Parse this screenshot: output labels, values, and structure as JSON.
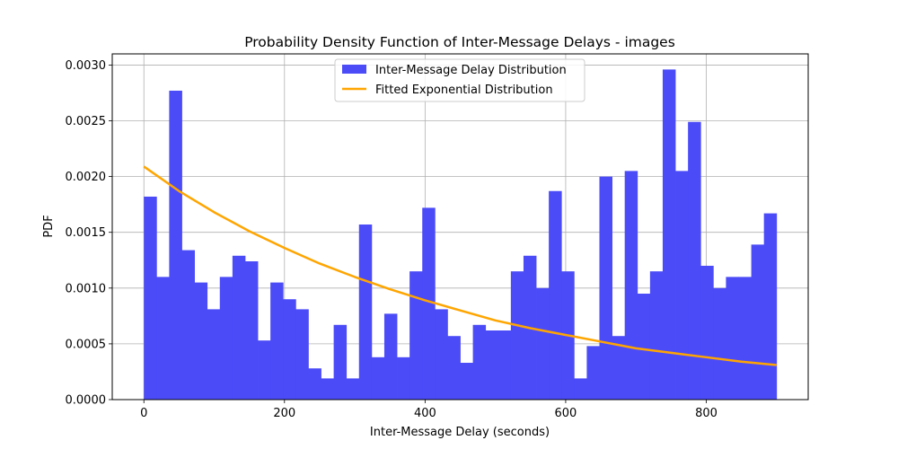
{
  "chart_data": {
    "type": "bar",
    "title": "Probability Density Function of Inter-Message Delays - images",
    "xlabel": "Inter-Message Delay (seconds)",
    "ylabel": "PDF",
    "xlim": [
      -45,
      945
    ],
    "ylim": [
      0,
      0.0031
    ],
    "xticks": [
      "0",
      "200",
      "400",
      "600",
      "800"
    ],
    "xtick_values": [
      0,
      200,
      400,
      600,
      800
    ],
    "yticks": [
      "0.0000",
      "0.0005",
      "0.0010",
      "0.0015",
      "0.0020",
      "0.0025",
      "0.0030"
    ],
    "ytick_values": [
      0,
      0.0005,
      0.001,
      0.0015,
      0.002,
      0.0025,
      0.003
    ],
    "grid": true,
    "legend_position": "top-center",
    "bin_start": 0,
    "bin_width": 18,
    "series": [
      {
        "name": "Inter-Message Delay Distribution",
        "kind": "histogram",
        "color": "#4b4bf8",
        "values": [
          0.00182,
          0.0011,
          0.00277,
          0.00134,
          0.00105,
          0.00081,
          0.0011,
          0.00129,
          0.00124,
          0.00053,
          0.00105,
          0.0009,
          0.00081,
          0.00028,
          0.00019,
          0.00067,
          0.00019,
          0.00157,
          0.00038,
          0.00077,
          0.00038,
          0.00115,
          0.00172,
          0.00081,
          0.00057,
          0.00033,
          0.00067,
          0.00062,
          0.00062,
          0.00115,
          0.00129,
          0.001,
          0.00187,
          0.00115,
          0.00019,
          0.00048,
          0.002,
          0.00057,
          0.00205,
          0.00095,
          0.00115,
          0.00296,
          0.00205,
          0.00249,
          0.0012,
          0.001,
          0.0011,
          0.0011,
          0.00139,
          0.00167
        ]
      },
      {
        "name": "Fitted Exponential Distribution",
        "kind": "line",
        "color": "#ffa500",
        "x": [
          0,
          50,
          100,
          150,
          200,
          250,
          300,
          350,
          400,
          450,
          500,
          550,
          600,
          650,
          700,
          750,
          800,
          850,
          900
        ],
        "values": [
          0.00209,
          0.00187,
          0.00168,
          0.00151,
          0.00136,
          0.00122,
          0.0011,
          0.00099,
          0.00089,
          0.0008,
          0.00071,
          0.00064,
          0.00058,
          0.00052,
          0.00046,
          0.00042,
          0.00038,
          0.00034,
          0.00031
        ]
      }
    ]
  }
}
